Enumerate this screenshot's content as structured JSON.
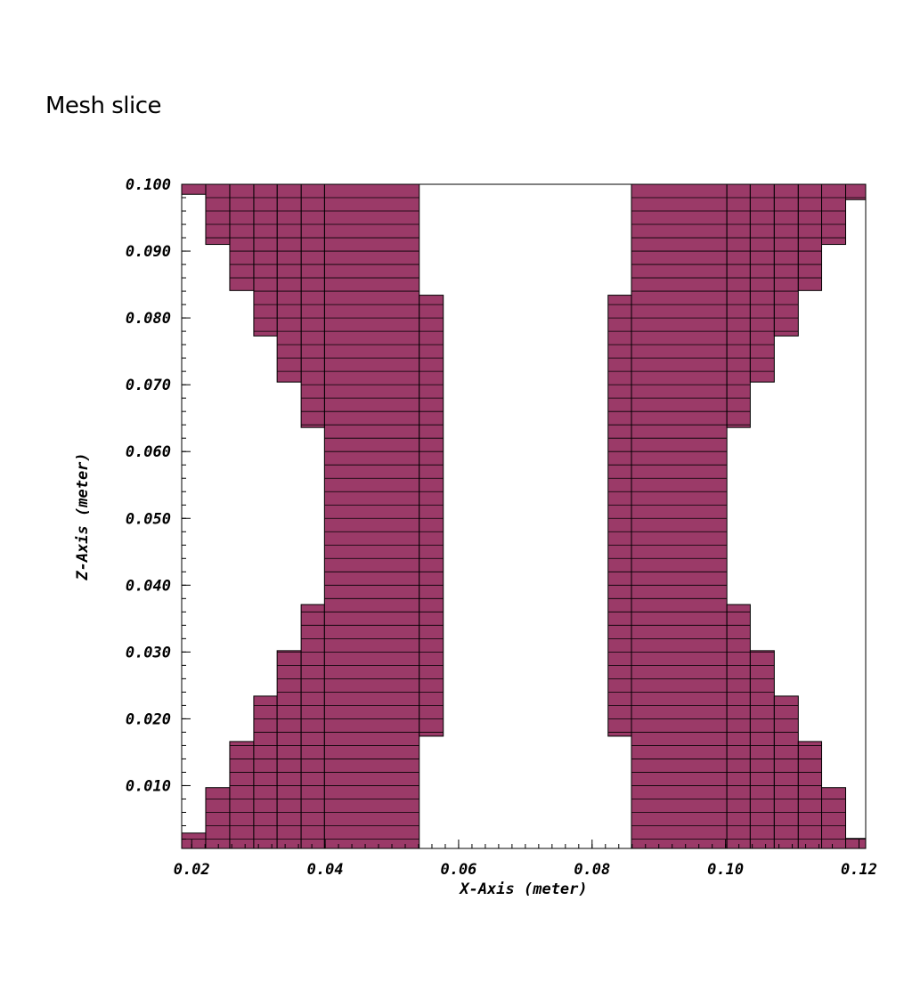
{
  "chart_data": {
    "type": "heatmap",
    "title": "Mesh slice",
    "xlabel": "X-Axis (meter)",
    "ylabel": "Z-Axis (meter)",
    "xlim": [
      0.0185,
      0.121
    ],
    "ylim": [
      0.0006,
      0.1
    ],
    "x_ticks": [
      "0.02",
      "0.04",
      "0.06",
      "0.08",
      "0.10",
      "0.12"
    ],
    "x_tick_values": [
      0.02,
      0.04,
      0.06,
      0.08,
      0.1,
      0.12
    ],
    "y_ticks": [
      "0.010",
      "0.020",
      "0.030",
      "0.040",
      "0.050",
      "0.060",
      "0.070",
      "0.080",
      "0.090",
      "0.100"
    ],
    "y_tick_values": [
      0.01,
      0.02,
      0.03,
      0.04,
      0.05,
      0.06,
      0.07,
      0.08,
      0.09,
      0.1
    ],
    "cell_color": "#9b3a68",
    "grid_line_color": "#000000",
    "layer_height": 0.002,
    "regions": [
      {
        "x": [
          0.0185,
          0.0221
        ],
        "z": [
          0.0006,
          0.0029
        ]
      },
      {
        "x": [
          0.0221,
          0.0257
        ],
        "z": [
          0.0006,
          0.0097
        ]
      },
      {
        "x": [
          0.0257,
          0.0293
        ],
        "z": [
          0.0006,
          0.0166
        ]
      },
      {
        "x": [
          0.0293,
          0.0328
        ],
        "z": [
          0.0006,
          0.0234
        ]
      },
      {
        "x": [
          0.0328,
          0.0364
        ],
        "z": [
          0.0006,
          0.0302
        ]
      },
      {
        "x": [
          0.0364,
          0.0399
        ],
        "z": [
          0.0006,
          0.0371
        ]
      },
      {
        "x": [
          0.0399,
          0.0541
        ],
        "z": [
          0.0006,
          0.1
        ]
      },
      {
        "x": [
          0.0541,
          0.0577
        ],
        "z": [
          0.0174,
          0.0834
        ]
      },
      {
        "x": [
          0.0364,
          0.0399
        ],
        "z": [
          0.0636,
          0.1
        ]
      },
      {
        "x": [
          0.0328,
          0.0364
        ],
        "z": [
          0.0704,
          0.1
        ]
      },
      {
        "x": [
          0.0293,
          0.0328
        ],
        "z": [
          0.0773,
          0.1
        ]
      },
      {
        "x": [
          0.0257,
          0.0293
        ],
        "z": [
          0.0841,
          0.1
        ]
      },
      {
        "x": [
          0.0221,
          0.0257
        ],
        "z": [
          0.091,
          0.1
        ]
      },
      {
        "x": [
          0.0185,
          0.0221
        ],
        "z": [
          0.0985,
          0.1
        ]
      },
      {
        "x": [
          0.0824,
          0.0859
        ],
        "z": [
          0.0174,
          0.0834
        ]
      },
      {
        "x": [
          0.0859,
          0.1002
        ],
        "z": [
          0.0006,
          0.1
        ]
      },
      {
        "x": [
          0.1002,
          0.1037
        ],
        "z": [
          0.0006,
          0.0371
        ]
      },
      {
        "x": [
          0.1037,
          0.1073
        ],
        "z": [
          0.0006,
          0.0302
        ]
      },
      {
        "x": [
          0.1073,
          0.1109
        ],
        "z": [
          0.0006,
          0.0234
        ]
      },
      {
        "x": [
          0.1109,
          0.1144
        ],
        "z": [
          0.0006,
          0.0166
        ]
      },
      {
        "x": [
          0.1144,
          0.118
        ],
        "z": [
          0.0006,
          0.0097
        ]
      },
      {
        "x": [
          0.118,
          0.121
        ],
        "z": [
          0.0006,
          0.0021
        ]
      },
      {
        "x": [
          0.1002,
          0.1037
        ],
        "z": [
          0.0636,
          0.1
        ]
      },
      {
        "x": [
          0.1037,
          0.1073
        ],
        "z": [
          0.0704,
          0.1
        ]
      },
      {
        "x": [
          0.1073,
          0.1109
        ],
        "z": [
          0.0773,
          0.1
        ]
      },
      {
        "x": [
          0.1109,
          0.1144
        ],
        "z": [
          0.0841,
          0.1
        ]
      },
      {
        "x": [
          0.1144,
          0.118
        ],
        "z": [
          0.091,
          0.1
        ]
      },
      {
        "x": [
          0.118,
          0.121
        ],
        "z": [
          0.0977,
          0.1
        ]
      }
    ],
    "column_lines": [
      0.0221,
      0.0257,
      0.0293,
      0.0328,
      0.0364,
      0.0399,
      0.0435,
      0.047,
      0.0506,
      0.0541,
      0.0577,
      0.0824,
      0.0859,
      0.0895,
      0.093,
      0.0966,
      0.1002,
      0.1037,
      0.1073,
      0.1109,
      0.1144,
      0.118
    ]
  }
}
